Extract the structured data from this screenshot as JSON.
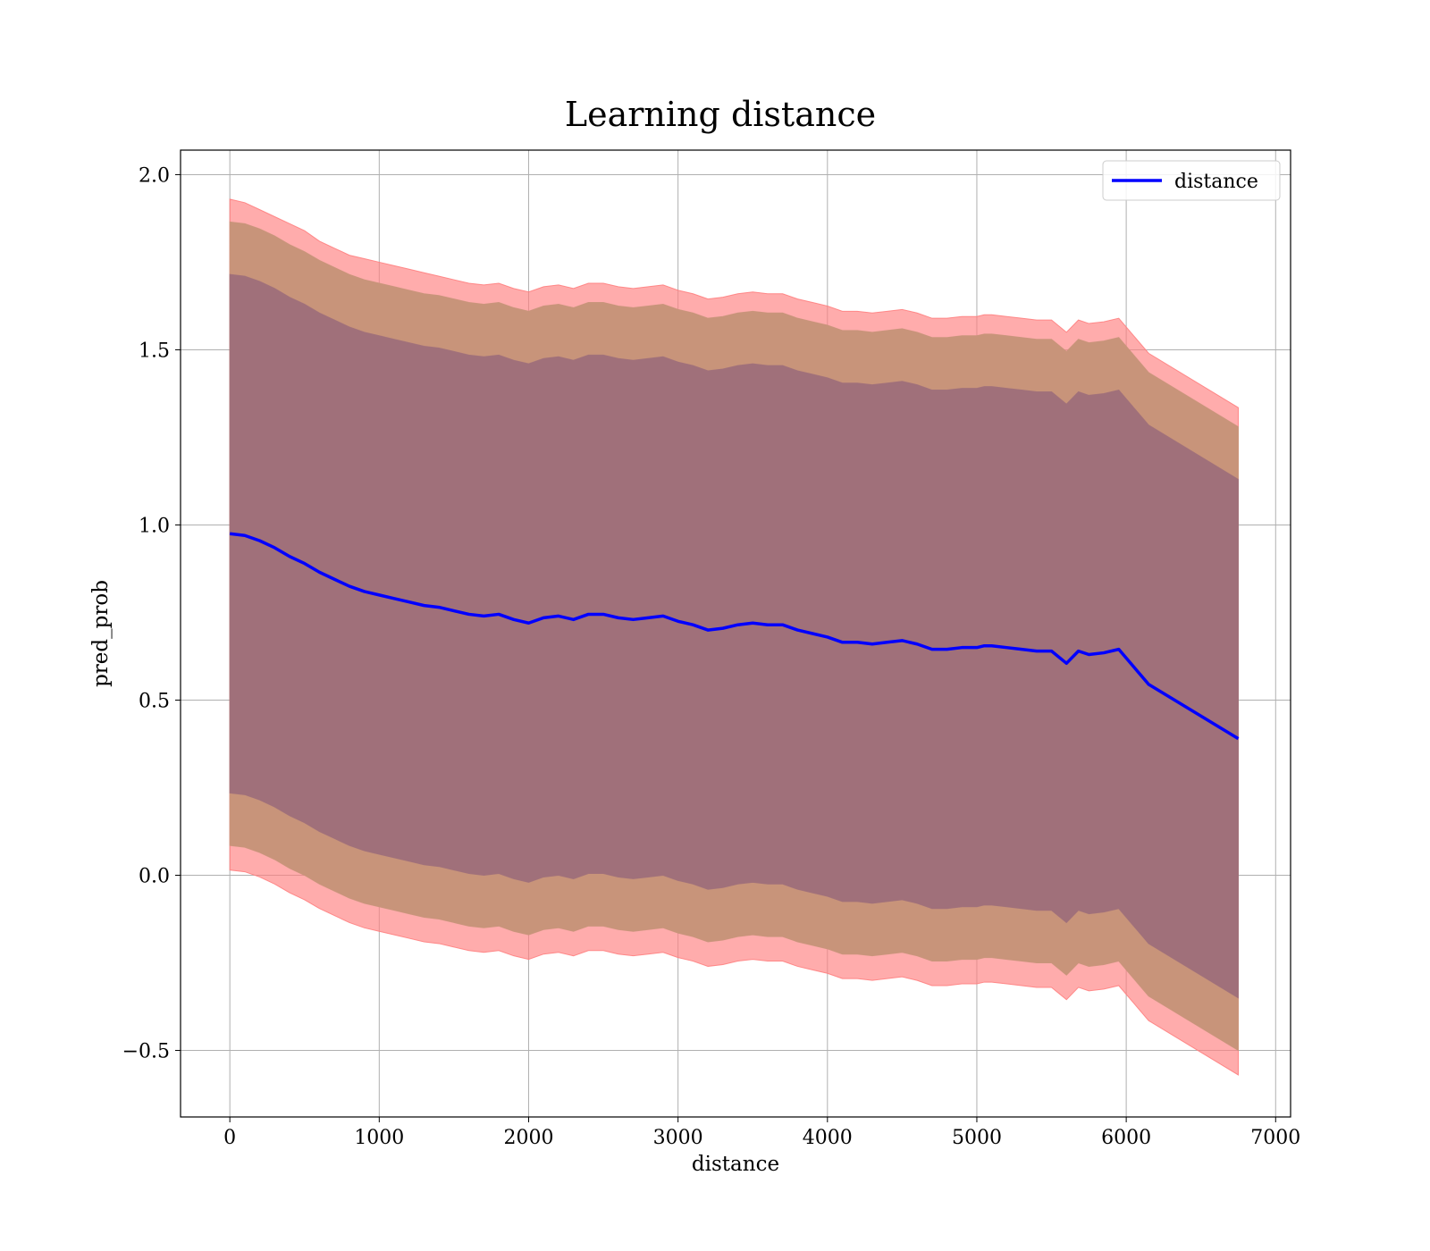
{
  "chart_data": {
    "type": "area",
    "title": "Learning distance",
    "xlabel": "distance",
    "ylabel": "pred_prob",
    "xlim": [
      -330,
      7100
    ],
    "ylim": [
      -0.69,
      2.07
    ],
    "x_ticks": [
      0,
      1000,
      2000,
      3000,
      4000,
      5000,
      6000,
      7000
    ],
    "x_tick_labels": [
      "0",
      "1000",
      "2000",
      "3000",
      "4000",
      "5000",
      "6000",
      "7000"
    ],
    "y_ticks": [
      -0.5,
      0.0,
      0.5,
      1.0,
      1.5,
      2.0
    ],
    "y_tick_labels": [
      "−0.5",
      "0.0",
      "0.5",
      "1.0",
      "1.5",
      "2.0"
    ],
    "grid": true,
    "legend": {
      "placement": "upper-right",
      "entries": [
        {
          "label": "distance",
          "color": "#0000ff"
        }
      ]
    },
    "colors": {
      "line": "#0000ff",
      "band_outer": "#ff8080",
      "band_middle": "#c8947a",
      "band_inner": "#a0707a",
      "grid": "#b0b0b0"
    },
    "x": [
      0,
      100,
      200,
      300,
      400,
      500,
      600,
      700,
      800,
      900,
      1000,
      1100,
      1200,
      1300,
      1400,
      1500,
      1600,
      1700,
      1800,
      1900,
      2000,
      2100,
      2200,
      2300,
      2400,
      2500,
      2600,
      2700,
      2800,
      2900,
      3000,
      3100,
      3200,
      3300,
      3400,
      3500,
      3600,
      3700,
      3800,
      3900,
      4000,
      4100,
      4200,
      4300,
      4400,
      4500,
      4600,
      4700,
      4800,
      4900,
      5000,
      5050,
      5100,
      5200,
      5300,
      5400,
      5500,
      5600,
      5680,
      5750,
      5850,
      5950,
      6150,
      6750
    ],
    "series": [
      {
        "name": "distance",
        "values": [
          0.975,
          0.97,
          0.955,
          0.935,
          0.91,
          0.89,
          0.865,
          0.845,
          0.825,
          0.81,
          0.8,
          0.79,
          0.78,
          0.77,
          0.765,
          0.755,
          0.745,
          0.74,
          0.745,
          0.73,
          0.72,
          0.735,
          0.74,
          0.73,
          0.745,
          0.745,
          0.735,
          0.73,
          0.735,
          0.74,
          0.725,
          0.715,
          0.7,
          0.705,
          0.715,
          0.72,
          0.715,
          0.715,
          0.7,
          0.69,
          0.68,
          0.665,
          0.665,
          0.66,
          0.665,
          0.67,
          0.66,
          0.645,
          0.645,
          0.65,
          0.65,
          0.655,
          0.655,
          0.65,
          0.645,
          0.64,
          0.64,
          0.605,
          0.64,
          0.63,
          0.635,
          0.645,
          0.545,
          0.39
        ]
      },
      {
        "name": "band_outer_upper",
        "values": [
          1.93,
          1.92,
          1.9,
          1.88,
          1.86,
          1.84,
          1.81,
          1.79,
          1.77,
          1.76,
          1.75,
          1.74,
          1.73,
          1.72,
          1.71,
          1.7,
          1.69,
          1.685,
          1.69,
          1.675,
          1.665,
          1.68,
          1.685,
          1.675,
          1.69,
          1.69,
          1.68,
          1.675,
          1.68,
          1.685,
          1.67,
          1.66,
          1.645,
          1.65,
          1.66,
          1.665,
          1.66,
          1.66,
          1.645,
          1.635,
          1.625,
          1.61,
          1.61,
          1.605,
          1.61,
          1.615,
          1.605,
          1.59,
          1.59,
          1.595,
          1.595,
          1.6,
          1.6,
          1.595,
          1.59,
          1.585,
          1.585,
          1.55,
          1.585,
          1.575,
          1.58,
          1.59,
          1.49,
          1.335
        ]
      },
      {
        "name": "band_middle_upper",
        "values": [
          1.865,
          1.86,
          1.845,
          1.825,
          1.8,
          1.78,
          1.755,
          1.735,
          1.715,
          1.7,
          1.69,
          1.68,
          1.67,
          1.66,
          1.655,
          1.645,
          1.635,
          1.63,
          1.635,
          1.62,
          1.61,
          1.625,
          1.63,
          1.62,
          1.635,
          1.635,
          1.625,
          1.62,
          1.625,
          1.63,
          1.615,
          1.605,
          1.59,
          1.595,
          1.605,
          1.61,
          1.605,
          1.605,
          1.59,
          1.58,
          1.57,
          1.555,
          1.555,
          1.55,
          1.555,
          1.56,
          1.55,
          1.535,
          1.535,
          1.54,
          1.54,
          1.545,
          1.545,
          1.54,
          1.535,
          1.53,
          1.53,
          1.495,
          1.53,
          1.52,
          1.525,
          1.535,
          1.435,
          1.28
        ]
      },
      {
        "name": "band_inner_upper",
        "values": [
          1.715,
          1.71,
          1.695,
          1.675,
          1.65,
          1.63,
          1.605,
          1.585,
          1.565,
          1.55,
          1.54,
          1.53,
          1.52,
          1.51,
          1.505,
          1.495,
          1.485,
          1.48,
          1.485,
          1.47,
          1.46,
          1.475,
          1.48,
          1.47,
          1.485,
          1.485,
          1.475,
          1.47,
          1.475,
          1.48,
          1.465,
          1.455,
          1.44,
          1.445,
          1.455,
          1.46,
          1.455,
          1.455,
          1.44,
          1.43,
          1.42,
          1.405,
          1.405,
          1.4,
          1.405,
          1.41,
          1.4,
          1.385,
          1.385,
          1.39,
          1.39,
          1.395,
          1.395,
          1.39,
          1.385,
          1.38,
          1.38,
          1.345,
          1.38,
          1.37,
          1.375,
          1.385,
          1.285,
          1.13
        ]
      },
      {
        "name": "band_inner_lower",
        "values": [
          0.235,
          0.23,
          0.215,
          0.195,
          0.17,
          0.15,
          0.125,
          0.105,
          0.085,
          0.07,
          0.06,
          0.05,
          0.04,
          0.03,
          0.025,
          0.015,
          0.005,
          0.0,
          0.005,
          -0.01,
          -0.02,
          -0.005,
          0.0,
          -0.01,
          0.005,
          0.005,
          -0.005,
          -0.01,
          -0.005,
          0.0,
          -0.015,
          -0.025,
          -0.04,
          -0.035,
          -0.025,
          -0.02,
          -0.025,
          -0.025,
          -0.04,
          -0.05,
          -0.06,
          -0.075,
          -0.075,
          -0.08,
          -0.075,
          -0.07,
          -0.08,
          -0.095,
          -0.095,
          -0.09,
          -0.09,
          -0.085,
          -0.085,
          -0.09,
          -0.095,
          -0.1,
          -0.1,
          -0.135,
          -0.1,
          -0.11,
          -0.105,
          -0.095,
          -0.195,
          -0.35
        ]
      },
      {
        "name": "band_middle_lower",
        "values": [
          0.085,
          0.08,
          0.065,
          0.045,
          0.02,
          0.0,
          -0.025,
          -0.045,
          -0.065,
          -0.08,
          -0.09,
          -0.1,
          -0.11,
          -0.12,
          -0.125,
          -0.135,
          -0.145,
          -0.15,
          -0.145,
          -0.16,
          -0.17,
          -0.155,
          -0.15,
          -0.16,
          -0.145,
          -0.145,
          -0.155,
          -0.16,
          -0.155,
          -0.15,
          -0.165,
          -0.175,
          -0.19,
          -0.185,
          -0.175,
          -0.17,
          -0.175,
          -0.175,
          -0.19,
          -0.2,
          -0.21,
          -0.225,
          -0.225,
          -0.23,
          -0.225,
          -0.22,
          -0.23,
          -0.245,
          -0.245,
          -0.24,
          -0.24,
          -0.235,
          -0.235,
          -0.24,
          -0.245,
          -0.25,
          -0.25,
          -0.285,
          -0.25,
          -0.26,
          -0.255,
          -0.245,
          -0.345,
          -0.5
        ]
      },
      {
        "name": "band_outer_lower",
        "values": [
          0.015,
          0.01,
          -0.005,
          -0.025,
          -0.05,
          -0.07,
          -0.095,
          -0.115,
          -0.135,
          -0.15,
          -0.16,
          -0.17,
          -0.18,
          -0.19,
          -0.195,
          -0.205,
          -0.215,
          -0.22,
          -0.215,
          -0.23,
          -0.24,
          -0.225,
          -0.22,
          -0.23,
          -0.215,
          -0.215,
          -0.225,
          -0.23,
          -0.225,
          -0.22,
          -0.235,
          -0.245,
          -0.26,
          -0.255,
          -0.245,
          -0.24,
          -0.245,
          -0.245,
          -0.26,
          -0.27,
          -0.28,
          -0.295,
          -0.295,
          -0.3,
          -0.295,
          -0.29,
          -0.3,
          -0.315,
          -0.315,
          -0.31,
          -0.31,
          -0.305,
          -0.305,
          -0.31,
          -0.315,
          -0.32,
          -0.32,
          -0.355,
          -0.32,
          -0.33,
          -0.325,
          -0.315,
          -0.415,
          -0.57
        ]
      }
    ]
  }
}
